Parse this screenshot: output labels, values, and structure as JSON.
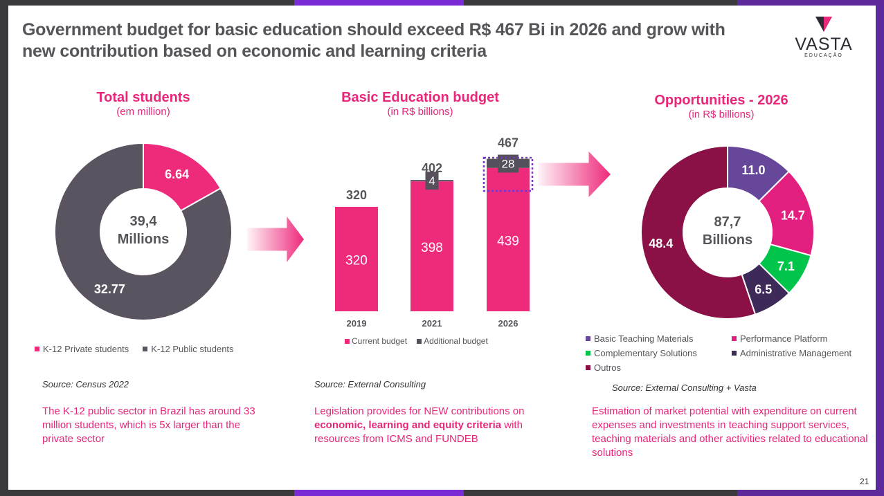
{
  "title": "Government budget for basic education should exceed R$ 467 Bi in 2026 and grow with new contribution based on economic and learning criteria",
  "logo": {
    "word": "VASTA",
    "sub": "EDUCAÇÃO"
  },
  "colors": {
    "pink": "#ee2a7b",
    "dark": "#56505d",
    "text": "#55555a"
  },
  "chart_data": [
    {
      "type": "pie",
      "title": "Total students",
      "subtitle": "(em million)",
      "center_label": [
        "39,4",
        "Millions"
      ],
      "labels": [
        "K-12 Private students",
        "K-12 Public students"
      ],
      "value_labels": [
        "6.64",
        "32.77"
      ],
      "values": [
        6.64,
        32.77
      ],
      "colors": [
        "#ee2a7b",
        "#5a5360"
      ],
      "legend": "bottom"
    },
    {
      "type": "bar",
      "stacked": true,
      "title": "Basic Education budget",
      "subtitle": "(in R$ billions)",
      "categories": [
        "2019",
        "2021",
        "2026"
      ],
      "series": [
        {
          "name": "Current budget",
          "values": [
            320,
            398,
            439
          ],
          "labels": [
            "320",
            "398",
            "439"
          ],
          "color": "#ee2a7b"
        },
        {
          "name": "Additional budget",
          "values": [
            0,
            4,
            28
          ],
          "labels": [
            "",
            "4",
            "28"
          ],
          "color": "#56505d"
        }
      ],
      "totals": [
        "320",
        "402",
        "467"
      ],
      "highlight_category": "2026",
      "legend": "bottom"
    },
    {
      "type": "pie",
      "title": "Opportunities - 2026",
      "subtitle": "(in R$ billions)",
      "center_label": [
        "87,7",
        "Billions"
      ],
      "labels": [
        "Basic Teaching Materials",
        "Performance Platform",
        "Complementary Solutions",
        "Administrative Management",
        "Outros"
      ],
      "value_labels": [
        "11.0",
        "14.7",
        "7.1",
        "6.5",
        "48.4"
      ],
      "values": [
        11.0,
        14.7,
        7.1,
        6.5,
        48.4
      ],
      "colors": [
        "#67479a",
        "#e21f7f",
        "#00c54a",
        "#3e2a58",
        "#8a1046"
      ],
      "legend": "bottom"
    }
  ],
  "sources": [
    "Source: Census 2022",
    "Source: External Consulting",
    "Source: External Consulting + Vasta"
  ],
  "texts": {
    "left": "The K-12 public sector in Brazil has around 33 million students, which is 5x larger than the private sector",
    "middle_a": "Legislation provides for NEW contributions on ",
    "middle_b": "economic, learning and equity criteria",
    "middle_c": " with resources from ICMS and FUNDEB",
    "right": "Estimation of market potential with expenditure on current expenses and investments in teaching support services, teaching materials and other activities related to educational solutions"
  },
  "page_number": "21"
}
